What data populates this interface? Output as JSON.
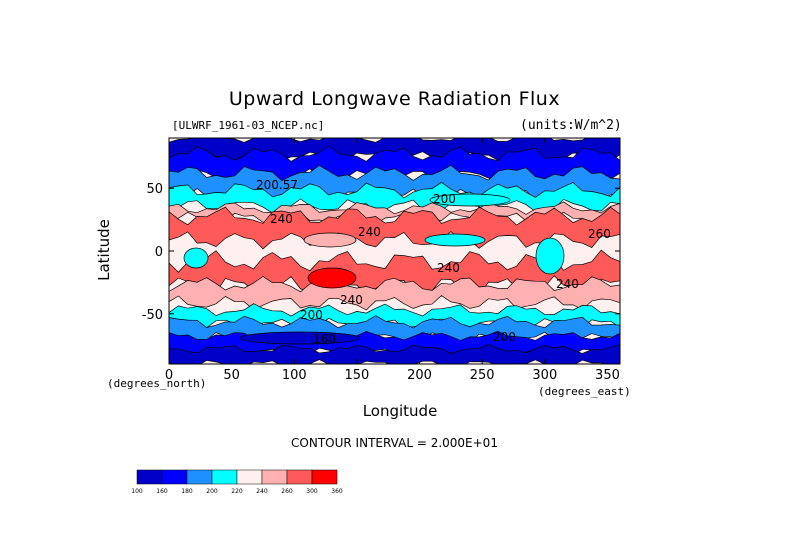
{
  "chart_data": {
    "type": "heatmap",
    "title": "Upward Longwave Radiation Flux",
    "subtitle_left": "[ULWRF_1961-03_NCEP.nc]",
    "subtitle_right": "(units:W/m^2)",
    "xlabel": "Longitude",
    "ylabel": "Latitude",
    "x_unit_left": "(degrees_north)",
    "x_unit_right": "(degrees_east)",
    "xlim": [
      0,
      360
    ],
    "ylim": [
      -90,
      90
    ],
    "x_ticks": [
      "0",
      "50",
      "100",
      "150",
      "200",
      "250",
      "300",
      "350"
    ],
    "y_ticks": [
      "50",
      "0",
      "-50"
    ],
    "contour_interval_text": "CONTOUR INTERVAL = 2.000E+01",
    "contour_labels": [
      "200.57",
      "200",
      "240",
      "240",
      "240",
      "240",
      "260",
      "240",
      "200",
      "200",
      "160"
    ],
    "colorbar": {
      "levels": [
        "100",
        "160",
        "180",
        "200",
        "220",
        "240",
        "260",
        "300",
        "360"
      ],
      "colors": [
        "#0000c8",
        "#0000ff",
        "#1e90ff",
        "#00ffff",
        "#fff0f0",
        "#ffb0b0",
        "#ff5a5a",
        "#ff0000"
      ]
    },
    "field_colors": {
      "c160": "#0000c8",
      "c180": "#0000ff",
      "c200": "#1e90ff",
      "c220": "#00ffff",
      "c240": "#fff0f0",
      "c260": "#ffb0b0",
      "c280": "#ff5a5a",
      "c300": "#ff0000"
    }
  }
}
